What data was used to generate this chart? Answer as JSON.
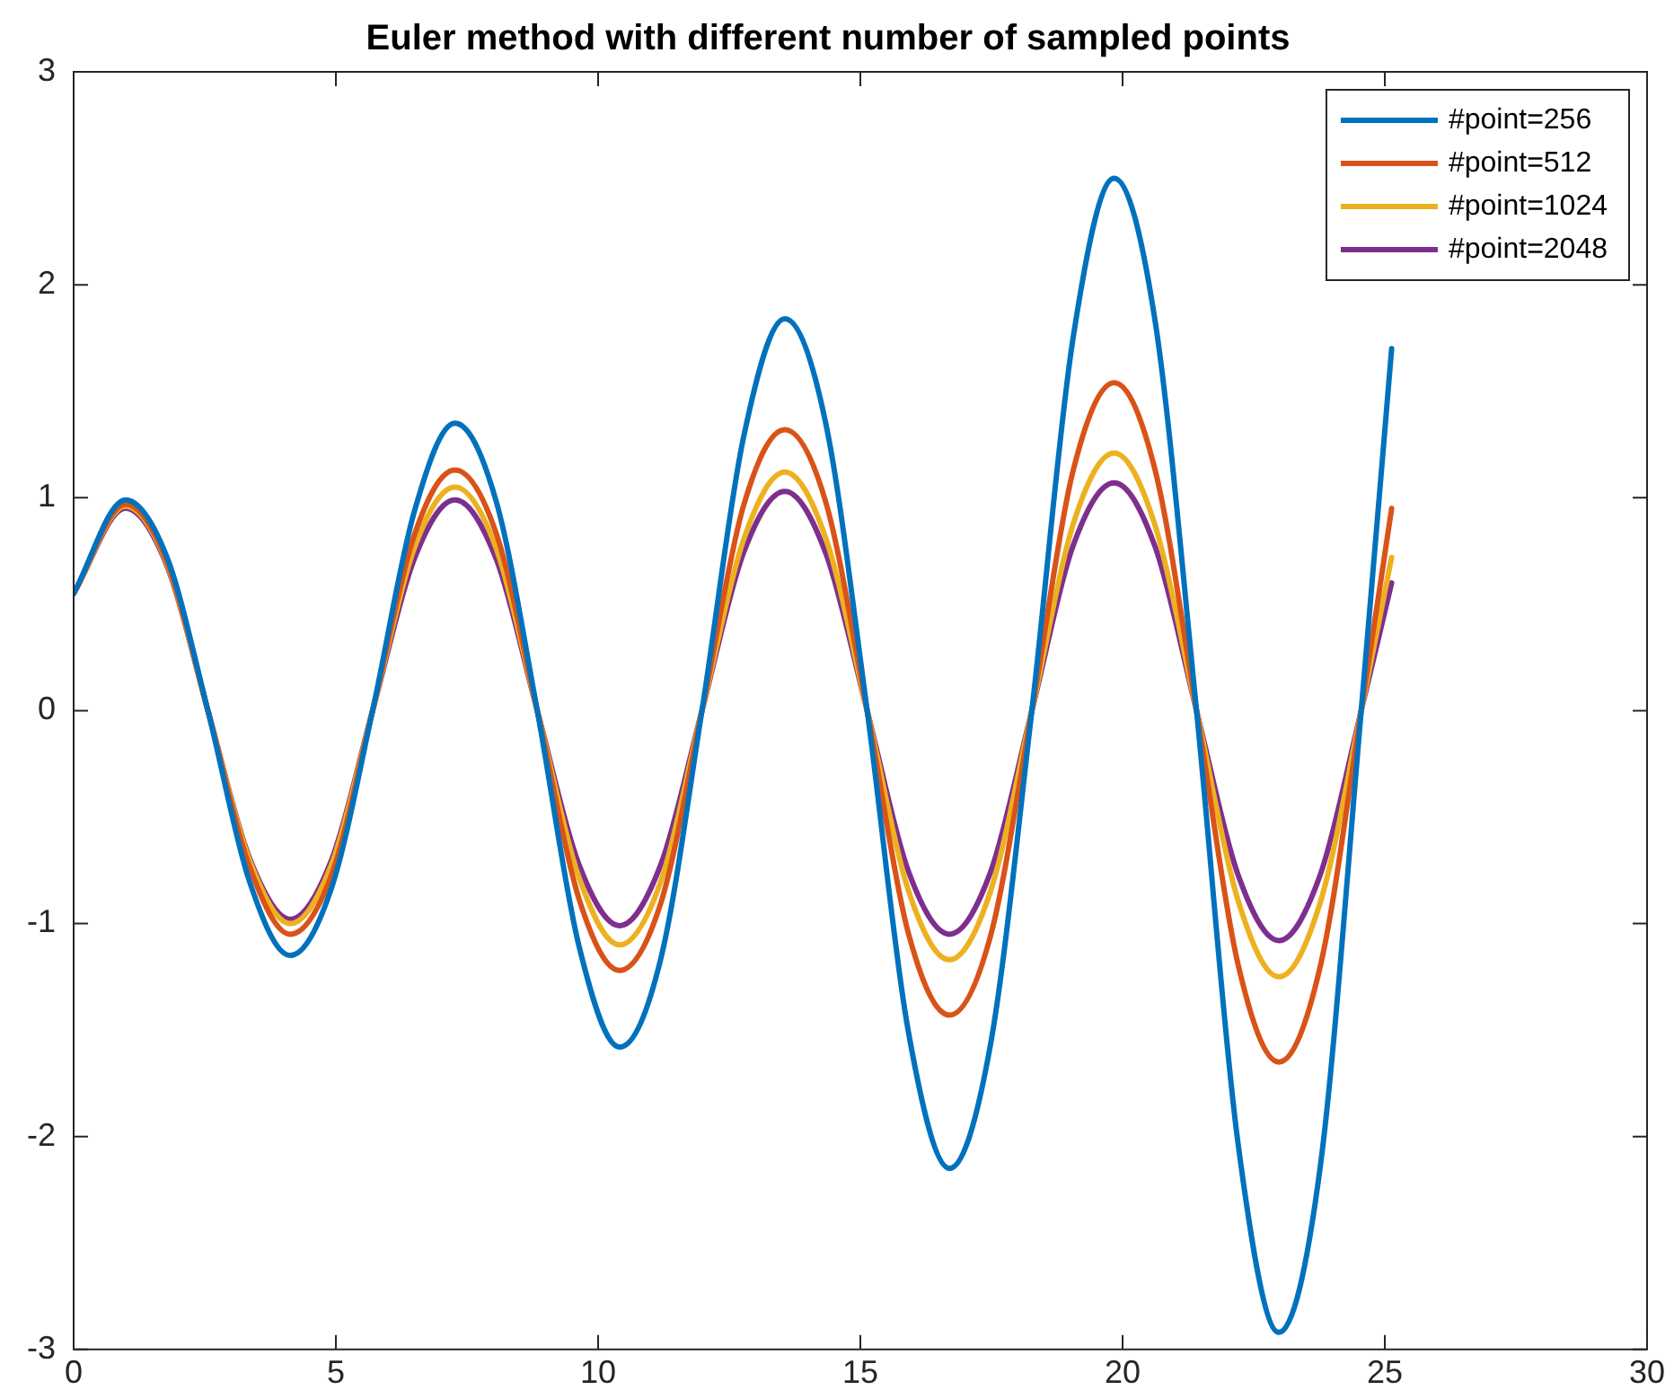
{
  "chart_data": {
    "type": "line",
    "title": "Euler method with different number of sampled points",
    "x": [
      0,
      0.99,
      1.78,
      2.56,
      3.35,
      4.13,
      4.92,
      5.7,
      6.49,
      7.27,
      8.06,
      8.84,
      9.63,
      10.41,
      11.2,
      11.98,
      12.77,
      13.56,
      14.34,
      15.13,
      15.91,
      16.7,
      17.48,
      18.27,
      19.05,
      19.84,
      20.62,
      21.41,
      22.2,
      22.98,
      23.77,
      24.55,
      25.13
    ],
    "series": [
      {
        "name": "#point=256",
        "color": "#0072bd",
        "values": [
          0.55,
          0.99,
          0.72,
          0,
          -0.8,
          -1.15,
          -0.83,
          0,
          0.93,
          1.35,
          0.98,
          0,
          -1.1,
          -1.58,
          -1.16,
          0,
          1.28,
          1.84,
          1.35,
          0,
          -1.5,
          -2.15,
          -1.57,
          0,
          1.74,
          2.5,
          1.83,
          0,
          -2.03,
          -2.92,
          -2.14,
          0,
          1.7
        ]
      },
      {
        "name": "#point=512",
        "color": "#d95319",
        "values": [
          0.55,
          0.97,
          0.7,
          0,
          -0.73,
          -1.05,
          -0.77,
          0,
          0.82,
          1.13,
          0.83,
          0,
          -0.88,
          -1.22,
          -0.9,
          0,
          0.96,
          1.32,
          0.98,
          0,
          -1.04,
          -1.43,
          -1.06,
          0,
          1.12,
          1.54,
          1.13,
          0,
          -1.19,
          -1.65,
          -1.2,
          0,
          0.95
        ]
      },
      {
        "name": "#point=1024",
        "color": "#edb120",
        "values": [
          0.55,
          0.96,
          0.69,
          0,
          -0.7,
          -1.0,
          -0.72,
          0,
          0.76,
          1.05,
          0.76,
          0,
          -0.78,
          -1.1,
          -0.8,
          0,
          0.8,
          1.12,
          0.81,
          0,
          -0.84,
          -1.17,
          -0.85,
          0,
          0.87,
          1.21,
          0.87,
          0,
          -0.89,
          -1.25,
          -0.9,
          0,
          0.72
        ]
      },
      {
        "name": "#point=2048",
        "color": "#7e2f8e",
        "values": [
          0.55,
          0.95,
          0.68,
          0,
          -0.69,
          -0.98,
          -0.7,
          0,
          0.71,
          0.99,
          0.71,
          0,
          -0.72,
          -1.01,
          -0.72,
          0,
          0.74,
          1.03,
          0.74,
          0,
          -0.75,
          -1.05,
          -0.76,
          0,
          0.77,
          1.07,
          0.77,
          0,
          -0.77,
          -1.08,
          -0.77,
          0,
          0.6
        ]
      }
    ],
    "xlim": [
      0,
      30
    ],
    "xticks": [
      0,
      5,
      10,
      15,
      20,
      25,
      30
    ],
    "ylim": [
      -3,
      3
    ],
    "yticks": [
      -3,
      -2,
      -1,
      0,
      1,
      2,
      3
    ],
    "grid": false,
    "legend": "top right",
    "marker": "none",
    "line_style": "solid"
  }
}
